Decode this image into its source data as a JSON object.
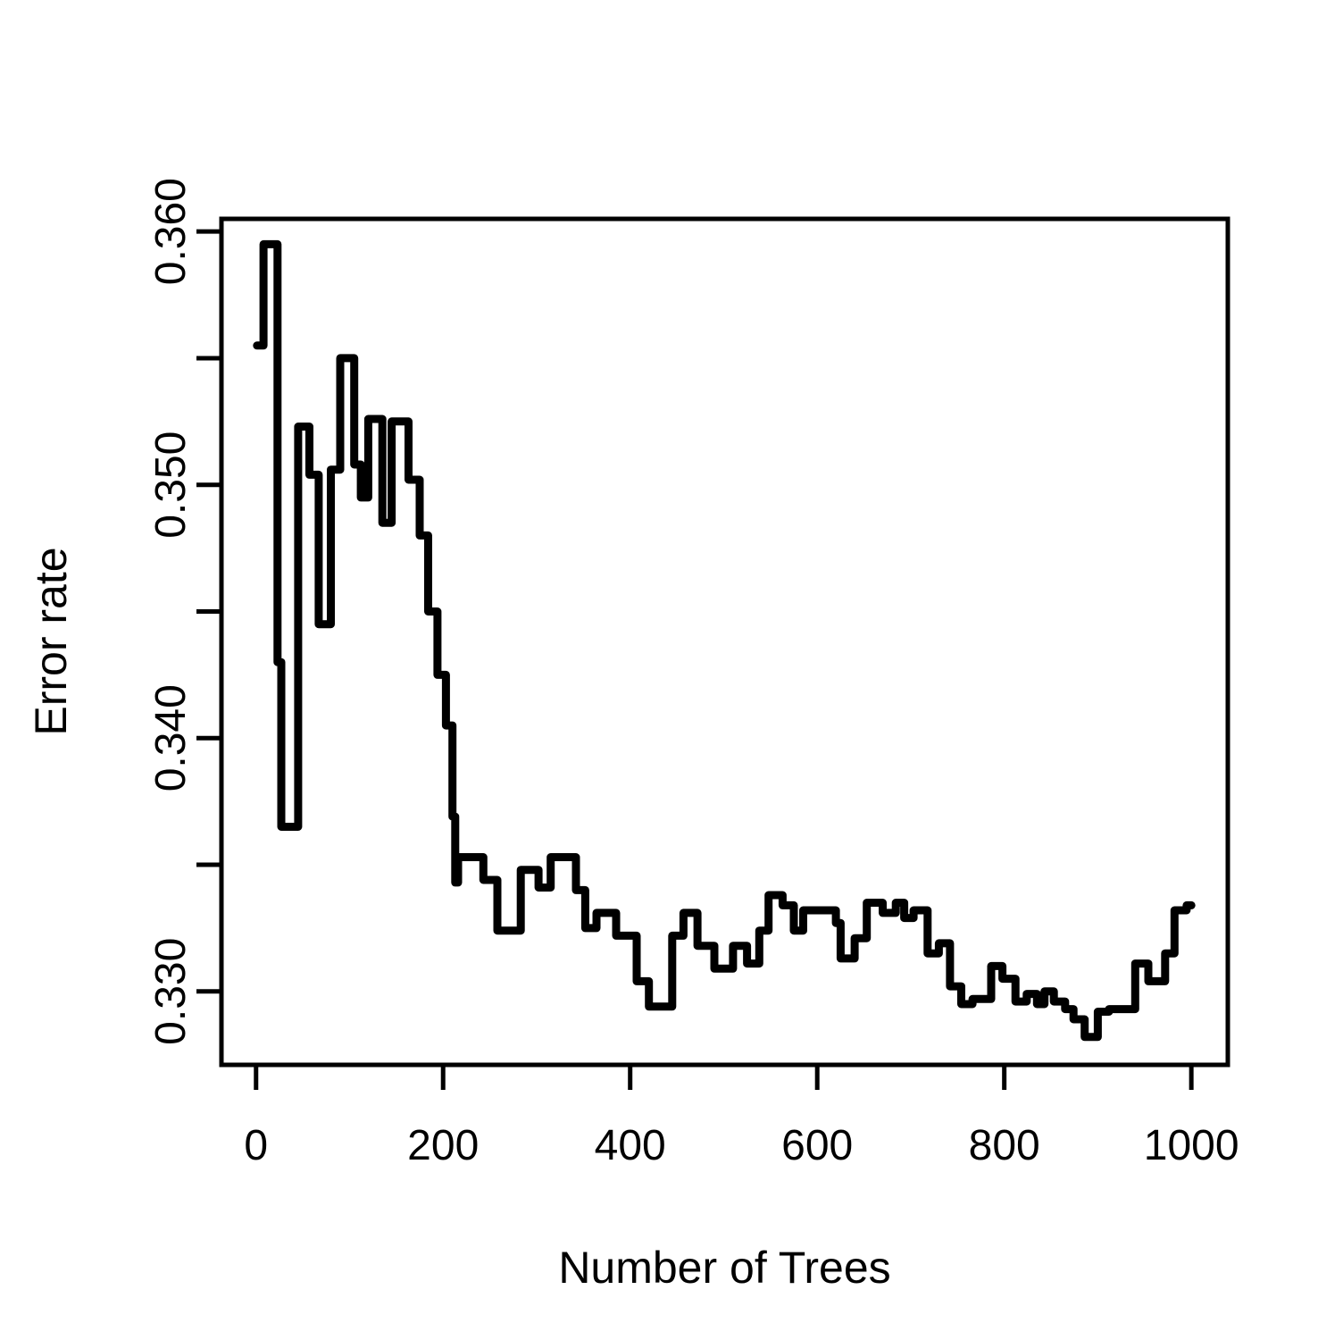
{
  "figure": {
    "background_color": "#ffffff",
    "foreground_color": "#000000"
  },
  "chart_data": {
    "type": "line",
    "curve_style": "step",
    "title": "",
    "xlabel": "Number of Trees",
    "ylabel": "Error rate",
    "xlim": [
      -37,
      1039
    ],
    "ylim": [
      0.3271,
      0.3605
    ],
    "grid": false,
    "legend": null,
    "line_color": "#000000",
    "line_width": 9,
    "axis_color": "#000000",
    "axis_line_width": 5,
    "x_axis": {
      "ticks": [
        0,
        200,
        400,
        600,
        800,
        1000
      ],
      "tick_labels": [
        "0",
        "200",
        "400",
        "600",
        "800",
        "1000"
      ]
    },
    "y_axis": {
      "ticks": [
        0.33,
        0.335,
        0.34,
        0.345,
        0.35,
        0.355,
        0.36
      ],
      "tick_labels": [
        "0.330",
        "",
        "0.340",
        "",
        "0.350",
        "",
        "0.360"
      ]
    },
    "series": [
      {
        "name": "error_rate",
        "points": [
          [
            1,
            0.3555
          ],
          [
            8,
            0.3595
          ],
          [
            23,
            0.343
          ],
          [
            27,
            0.3365
          ],
          [
            45,
            0.3523
          ],
          [
            57,
            0.3504
          ],
          [
            67,
            0.3445
          ],
          [
            80,
            0.3506
          ],
          [
            90,
            0.355
          ],
          [
            105,
            0.3508
          ],
          [
            112,
            0.3495
          ],
          [
            120,
            0.3526
          ],
          [
            135,
            0.3485
          ],
          [
            145,
            0.3525
          ],
          [
            163,
            0.3502
          ],
          [
            175,
            0.348
          ],
          [
            184,
            0.345
          ],
          [
            194,
            0.3425
          ],
          [
            203,
            0.3405
          ],
          [
            210,
            0.3369
          ],
          [
            213,
            0.3343
          ],
          [
            216,
            0.3353
          ],
          [
            243,
            0.3344
          ],
          [
            258,
            0.3324
          ],
          [
            283,
            0.3348
          ],
          [
            302,
            0.3341
          ],
          [
            315,
            0.3353
          ],
          [
            342,
            0.334
          ],
          [
            352,
            0.3325
          ],
          [
            364,
            0.3331
          ],
          [
            385,
            0.3322
          ],
          [
            407,
            0.3304
          ],
          [
            420,
            0.3294
          ],
          [
            445,
            0.3322
          ],
          [
            457,
            0.3331
          ],
          [
            472,
            0.3318
          ],
          [
            490,
            0.3309
          ],
          [
            510,
            0.3318
          ],
          [
            525,
            0.3311
          ],
          [
            538,
            0.3324
          ],
          [
            548,
            0.3338
          ],
          [
            563,
            0.3334
          ],
          [
            575,
            0.3324
          ],
          [
            585,
            0.3332
          ],
          [
            620,
            0.3327
          ],
          [
            625,
            0.3313
          ],
          [
            640,
            0.3321
          ],
          [
            653,
            0.3335
          ],
          [
            670,
            0.3331
          ],
          [
            684,
            0.3335
          ],
          [
            693,
            0.3329
          ],
          [
            703,
            0.3332
          ],
          [
            718,
            0.3315
          ],
          [
            730,
            0.3319
          ],
          [
            742,
            0.3302
          ],
          [
            754,
            0.3295
          ],
          [
            766,
            0.3297
          ],
          [
            786,
            0.331
          ],
          [
            798,
            0.3305
          ],
          [
            812,
            0.3296
          ],
          [
            824,
            0.3299
          ],
          [
            835,
            0.3295
          ],
          [
            843,
            0.33
          ],
          [
            853,
            0.3296
          ],
          [
            865,
            0.3293
          ],
          [
            874,
            0.3289
          ],
          [
            886,
            0.3282
          ],
          [
            900,
            0.3292
          ],
          [
            912,
            0.3293
          ],
          [
            940,
            0.3311
          ],
          [
            954,
            0.3304
          ],
          [
            972,
            0.3315
          ],
          [
            982,
            0.3332
          ],
          [
            995,
            0.3334
          ],
          [
            1000,
            0.3334
          ]
        ]
      }
    ]
  }
}
